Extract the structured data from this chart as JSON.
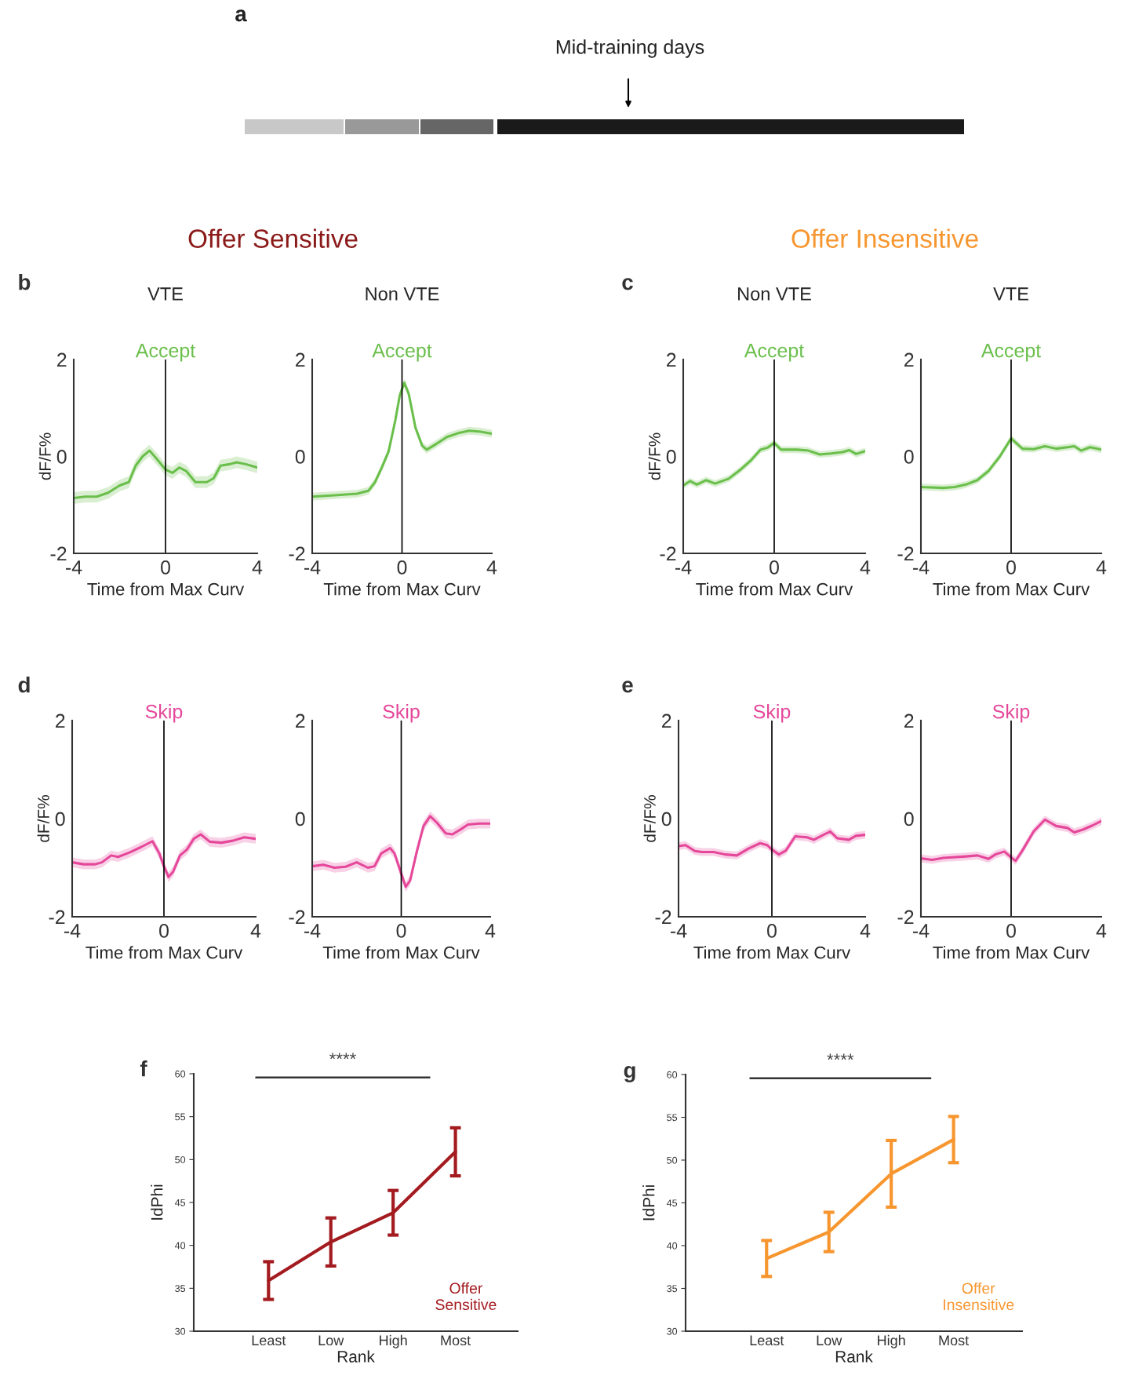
{
  "chart_data": [
    {
      "type": "other",
      "annotations": [
        "a",
        "Mid-training days"
      ]
    },
    {
      "type": "line",
      "title": "Accept",
      "subtitle": "VTE",
      "xlabel": "Time from Max Curv",
      "ylabel": "dF/F%",
      "xlim": [
        -4,
        4
      ],
      "ylim": [
        -2,
        2
      ],
      "xticks": [
        -4,
        0,
        4
      ],
      "yticks": [
        -2,
        0,
        2
      ],
      "ref_lines": [
        {
          "axis": "x",
          "value": 0
        }
      ],
      "annotations": [
        "b",
        "Offer Sensitive"
      ],
      "x": [
        -4,
        -3.5,
        -3,
        -2.5,
        -2,
        -1.6,
        -1.3,
        -1,
        -0.7,
        -0.4,
        0,
        0.3,
        0.6,
        0.9,
        1.3,
        1.8,
        2.1,
        2.4,
        2.8,
        3.1,
        3.5,
        4
      ],
      "series": [
        {
          "color": "#6abf4b",
          "values": [
            -0.86,
            -0.83,
            -0.83,
            -0.75,
            -0.6,
            -0.53,
            -0.19,
            0,
            0.12,
            -0.04,
            -0.27,
            -0.34,
            -0.23,
            -0.3,
            -0.53,
            -0.53,
            -0.45,
            -0.19,
            -0.16,
            -0.12,
            -0.16,
            -0.23
          ],
          "lower": [
            -0.98,
            -0.95,
            -0.95,
            -0.87,
            -0.72,
            -0.65,
            -0.31,
            -0.12,
            0.0,
            -0.16,
            -0.39,
            -0.46,
            -0.35,
            -0.42,
            -0.65,
            -0.65,
            -0.57,
            -0.31,
            -0.28,
            -0.24,
            -0.28,
            -0.35
          ],
          "upper": [
            -0.74,
            -0.71,
            -0.71,
            -0.63,
            -0.48,
            -0.41,
            -0.07,
            0.12,
            0.24,
            0.08,
            -0.15,
            -0.22,
            -0.11,
            -0.18,
            -0.41,
            -0.41,
            -0.33,
            -0.07,
            -0.04,
            0.0,
            -0.04,
            -0.11
          ]
        }
      ]
    },
    {
      "type": "line",
      "title": "Accept",
      "subtitle": "Non VTE",
      "xlabel": "Time from Max Curv",
      "xlim": [
        -4,
        4
      ],
      "ylim": [
        -2,
        2
      ],
      "xticks": [
        -4,
        0,
        4
      ],
      "yticks": [
        -2,
        0,
        2
      ],
      "ref_lines": [
        {
          "axis": "x",
          "value": 0
        }
      ],
      "x": [
        -4,
        -3,
        -2,
        -1.5,
        -1.2,
        -0.9,
        -0.6,
        -0.3,
        -0.1,
        0.1,
        0.3,
        0.6,
        0.9,
        1.1,
        1.5,
        2,
        2.5,
        3,
        3.5,
        4
      ],
      "series": [
        {
          "color": "#6abf4b",
          "values": [
            -0.83,
            -0.8,
            -0.77,
            -0.71,
            -0.53,
            -0.23,
            0.1,
            0.74,
            1.26,
            1.52,
            1.29,
            0.59,
            0.22,
            0.14,
            0.25,
            0.4,
            0.48,
            0.53,
            0.51,
            0.47
          ],
          "lower": [
            -0.91,
            -0.88,
            -0.85,
            -0.79,
            -0.61,
            -0.31,
            0.02,
            0.66,
            1.18,
            1.44,
            1.21,
            0.51,
            0.14,
            0.06,
            0.17,
            0.32,
            0.4,
            0.45,
            0.43,
            0.39
          ],
          "upper": [
            -0.75,
            -0.72,
            -0.69,
            -0.63,
            -0.45,
            -0.15,
            0.18,
            0.82,
            1.34,
            1.6,
            1.37,
            0.67,
            0.3,
            0.22,
            0.33,
            0.48,
            0.56,
            0.61,
            0.59,
            0.55
          ]
        }
      ]
    },
    {
      "type": "line",
      "title": "Accept",
      "subtitle": "Non VTE",
      "xlabel": "Time from Max Curv",
      "ylabel": "dF/F%",
      "xlim": [
        -4,
        4
      ],
      "ylim": [
        -2,
        2
      ],
      "xticks": [
        -4,
        0,
        4
      ],
      "yticks": [
        -2,
        0,
        2
      ],
      "ref_lines": [
        {
          "axis": "x",
          "value": 0
        }
      ],
      "annotations": [
        "c",
        "Offer Insensitive"
      ],
      "x": [
        -4,
        -3.7,
        -3.4,
        -3,
        -2.6,
        -2,
        -1.5,
        -1,
        -0.6,
        -0.3,
        0,
        0.3,
        1,
        1.5,
        2,
        2.5,
        3,
        3.3,
        3.6,
        4
      ],
      "series": [
        {
          "color": "#6abf4b",
          "values": [
            -0.6,
            -0.51,
            -0.58,
            -0.49,
            -0.56,
            -0.46,
            -0.28,
            -0.07,
            0.14,
            0.18,
            0.28,
            0.14,
            0.14,
            0.12,
            0.04,
            0.06,
            0.09,
            0.13,
            0.05,
            0.11
          ],
          "lower": [
            -0.67,
            -0.58,
            -0.65,
            -0.56,
            -0.63,
            -0.53,
            -0.35,
            -0.14,
            0.07,
            0.11,
            0.21,
            0.07,
            0.07,
            0.05,
            -0.03,
            -0.01,
            0.02,
            0.06,
            -0.02,
            0.04
          ],
          "upper": [
            -0.53,
            -0.44,
            -0.51,
            -0.42,
            -0.49,
            -0.39,
            -0.21,
            0.0,
            0.21,
            0.25,
            0.35,
            0.21,
            0.21,
            0.19,
            0.11,
            0.13,
            0.16,
            0.2,
            0.12,
            0.18
          ]
        }
      ]
    },
    {
      "type": "line",
      "title": "Accept",
      "subtitle": "VTE",
      "xlabel": "Time from Max Curv",
      "xlim": [
        -4,
        4
      ],
      "ylim": [
        -2,
        2
      ],
      "xticks": [
        -4,
        0,
        4
      ],
      "yticks": [
        -2,
        0,
        2
      ],
      "ref_lines": [
        {
          "axis": "x",
          "value": 0
        }
      ],
      "x": [
        -4,
        -3,
        -2.5,
        -2,
        -1.5,
        -1,
        -0.5,
        0,
        0.5,
        1,
        1.5,
        2,
        2.5,
        2.8,
        3.1,
        3.5,
        4
      ],
      "series": [
        {
          "color": "#6abf4b",
          "values": [
            -0.63,
            -0.65,
            -0.63,
            -0.58,
            -0.49,
            -0.3,
            0,
            0.37,
            0.16,
            0.15,
            0.21,
            0.16,
            0.19,
            0.21,
            0.12,
            0.19,
            0.14
          ],
          "lower": [
            -0.7,
            -0.72,
            -0.7,
            -0.65,
            -0.56,
            -0.37,
            -0.07,
            0.3,
            0.09,
            0.08,
            0.14,
            0.09,
            0.12,
            0.14,
            0.05,
            0.12,
            0.07
          ],
          "upper": [
            -0.56,
            -0.58,
            -0.56,
            -0.51,
            -0.42,
            -0.23,
            0.07,
            0.44,
            0.23,
            0.22,
            0.28,
            0.23,
            0.26,
            0.28,
            0.19,
            0.26,
            0.21
          ]
        }
      ]
    },
    {
      "type": "line",
      "title": "Skip",
      "xlabel": "Time from Max Curv",
      "ylabel": "dF/F%",
      "xlim": [
        -4,
        4
      ],
      "ylim": [
        -2,
        2
      ],
      "xticks": [
        -4,
        0,
        4
      ],
      "yticks": [
        -2,
        0,
        2
      ],
      "ref_lines": [
        {
          "axis": "x",
          "value": 0
        }
      ],
      "annotations": [
        "d"
      ],
      "x": [
        -4,
        -3.5,
        -3,
        -2.7,
        -2.3,
        -2,
        -1.5,
        -1,
        -0.5,
        -0.2,
        0,
        0.2,
        0.4,
        0.7,
        1,
        1.3,
        1.6,
        2,
        2.5,
        3,
        3.5,
        4
      ],
      "series": [
        {
          "color": "#e5479a",
          "values": [
            -0.89,
            -0.93,
            -0.93,
            -0.89,
            -0.75,
            -0.78,
            -0.69,
            -0.58,
            -0.46,
            -0.71,
            -0.97,
            -1.19,
            -1.08,
            -0.75,
            -0.63,
            -0.41,
            -0.32,
            -0.47,
            -0.49,
            -0.45,
            -0.38,
            -0.41
          ],
          "lower": [
            -0.99,
            -1.03,
            -1.03,
            -0.99,
            -0.85,
            -0.88,
            -0.79,
            -0.68,
            -0.56,
            -0.81,
            -1.07,
            -1.29,
            -1.18,
            -0.85,
            -0.73,
            -0.51,
            -0.42,
            -0.57,
            -0.59,
            -0.55,
            -0.48,
            -0.51
          ],
          "upper": [
            -0.79,
            -0.83,
            -0.83,
            -0.79,
            -0.65,
            -0.68,
            -0.59,
            -0.48,
            -0.36,
            -0.61,
            -0.87,
            -1.09,
            -0.98,
            -0.65,
            -0.53,
            -0.31,
            -0.22,
            -0.37,
            -0.39,
            -0.35,
            -0.28,
            -0.31
          ]
        }
      ]
    },
    {
      "type": "line",
      "title": "Skip",
      "xlabel": "Time from Max Curv",
      "xlim": [
        -4,
        4
      ],
      "ylim": [
        -2,
        2
      ],
      "xticks": [
        -4,
        0,
        4
      ],
      "yticks": [
        -2,
        0,
        2
      ],
      "ref_lines": [
        {
          "axis": "x",
          "value": 0
        }
      ],
      "x": [
        -4,
        -3.5,
        -3,
        -2.5,
        -2,
        -1.5,
        -1.2,
        -0.9,
        -0.5,
        -0.3,
        0,
        0.2,
        0.4,
        0.7,
        1,
        1.3,
        1.6,
        2,
        2.3,
        2.7,
        3,
        3.5,
        4
      ],
      "series": [
        {
          "color": "#e5479a",
          "values": [
            -0.97,
            -0.94,
            -1.0,
            -0.98,
            -0.89,
            -1.0,
            -0.97,
            -0.71,
            -0.6,
            -0.71,
            -1.12,
            -1.39,
            -1.26,
            -0.67,
            -0.15,
            0.05,
            -0.08,
            -0.3,
            -0.32,
            -0.21,
            -0.12,
            -0.1,
            -0.1
          ],
          "lower": [
            -1.07,
            -1.04,
            -1.1,
            -1.08,
            -0.99,
            -1.1,
            -1.07,
            -0.81,
            -0.7,
            -0.81,
            -1.22,
            -1.49,
            -1.36,
            -0.77,
            -0.25,
            -0.05,
            -0.18,
            -0.4,
            -0.42,
            -0.31,
            -0.22,
            -0.2,
            -0.2
          ],
          "upper": [
            -0.87,
            -0.84,
            -0.9,
            -0.88,
            -0.79,
            -0.9,
            -0.87,
            -0.61,
            -0.5,
            -0.61,
            -1.02,
            -1.29,
            -1.16,
            -0.57,
            -0.05,
            0.15,
            0.02,
            -0.2,
            -0.22,
            -0.11,
            -0.02,
            0.0,
            0.0
          ]
        }
      ]
    },
    {
      "type": "line",
      "title": "Skip",
      "xlabel": "Time from Max Curv",
      "ylabel": "dF/F%",
      "xlim": [
        -4,
        4
      ],
      "ylim": [
        -2,
        2
      ],
      "xticks": [
        -4,
        0,
        4
      ],
      "yticks": [
        -2,
        0,
        2
      ],
      "ref_lines": [
        {
          "axis": "x",
          "value": 0
        }
      ],
      "annotations": [
        "e"
      ],
      "x": [
        -4,
        -3.7,
        -3.3,
        -3,
        -2.5,
        -2,
        -1.5,
        -1,
        -0.5,
        -0.2,
        0,
        0.3,
        0.6,
        1,
        1.5,
        1.8,
        2.5,
        2.8,
        3.3,
        3.6,
        4
      ],
      "series": [
        {
          "color": "#e5479a",
          "values": [
            -0.56,
            -0.54,
            -0.66,
            -0.68,
            -0.68,
            -0.73,
            -0.75,
            -0.61,
            -0.5,
            -0.54,
            -0.63,
            -0.73,
            -0.65,
            -0.36,
            -0.38,
            -0.43,
            -0.26,
            -0.4,
            -0.43,
            -0.35,
            -0.33
          ],
          "lower": [
            -0.64,
            -0.62,
            -0.74,
            -0.76,
            -0.76,
            -0.81,
            -0.83,
            -0.69,
            -0.58,
            -0.62,
            -0.71,
            -0.81,
            -0.73,
            -0.44,
            -0.46,
            -0.51,
            -0.34,
            -0.48,
            -0.51,
            -0.43,
            -0.41
          ],
          "upper": [
            -0.48,
            -0.46,
            -0.58,
            -0.6,
            -0.6,
            -0.65,
            -0.67,
            -0.53,
            -0.42,
            -0.46,
            -0.55,
            -0.65,
            -0.57,
            -0.28,
            -0.3,
            -0.35,
            -0.18,
            -0.32,
            -0.35,
            -0.27,
            -0.25
          ]
        }
      ]
    },
    {
      "type": "line",
      "title": "Skip",
      "xlabel": "Time from Max Curv",
      "xlim": [
        -4,
        4
      ],
      "ylim": [
        -2,
        2
      ],
      "xticks": [
        -4,
        0,
        4
      ],
      "yticks": [
        -2,
        0,
        2
      ],
      "ref_lines": [
        {
          "axis": "x",
          "value": 0
        }
      ],
      "x": [
        -4,
        -3.5,
        -3,
        -2,
        -1.5,
        -1,
        -0.7,
        -0.3,
        0,
        0.2,
        0.5,
        1,
        1.5,
        2,
        2.5,
        2.8,
        3.2,
        3.6,
        4
      ],
      "series": [
        {
          "color": "#e5479a",
          "values": [
            -0.81,
            -0.84,
            -0.8,
            -0.77,
            -0.75,
            -0.82,
            -0.73,
            -0.67,
            -0.79,
            -0.86,
            -0.65,
            -0.26,
            -0.02,
            -0.15,
            -0.19,
            -0.28,
            -0.22,
            -0.14,
            -0.05
          ],
          "lower": [
            -0.89,
            -0.92,
            -0.88,
            -0.85,
            -0.83,
            -0.9,
            -0.81,
            -0.75,
            -0.87,
            -0.94,
            -0.73,
            -0.34,
            -0.1,
            -0.23,
            -0.27,
            -0.36,
            -0.3,
            -0.22,
            -0.13
          ],
          "upper": [
            -0.73,
            -0.76,
            -0.72,
            -0.69,
            -0.67,
            -0.74,
            -0.65,
            -0.59,
            -0.71,
            -0.78,
            -0.57,
            -0.18,
            0.06,
            -0.07,
            -0.11,
            -0.2,
            -0.14,
            -0.06,
            0.03
          ]
        }
      ]
    },
    {
      "type": "line",
      "xlabel": "Rank",
      "ylabel": "IdPhi",
      "categories": [
        "Least",
        "Low",
        "High",
        "Most"
      ],
      "ylim": [
        30,
        60
      ],
      "yticks": [
        30,
        35,
        40,
        45,
        50,
        55,
        60
      ],
      "annotations": [
        "f",
        "****"
      ],
      "series": [
        {
          "name": "Offer\nSensitive",
          "color": "#a31a1f",
          "values": [
            35.9,
            40.4,
            43.8,
            50.9
          ],
          "errors": [
            2.2,
            2.8,
            2.6,
            2.8
          ]
        }
      ]
    },
    {
      "type": "line",
      "xlabel": "Rank",
      "ylabel": "IdPhi",
      "categories": [
        "Least",
        "Low",
        "High",
        "Most"
      ],
      "ylim": [
        30,
        60
      ],
      "yticks": [
        30,
        35,
        40,
        45,
        50,
        55,
        60
      ],
      "annotations": [
        "g",
        "****"
      ],
      "series": [
        {
          "name": "Offer\nInsensitive",
          "color": "#f7962f",
          "values": [
            38.5,
            41.6,
            48.4,
            52.4
          ],
          "errors": [
            2.1,
            2.3,
            3.9,
            2.7
          ]
        }
      ]
    }
  ]
}
